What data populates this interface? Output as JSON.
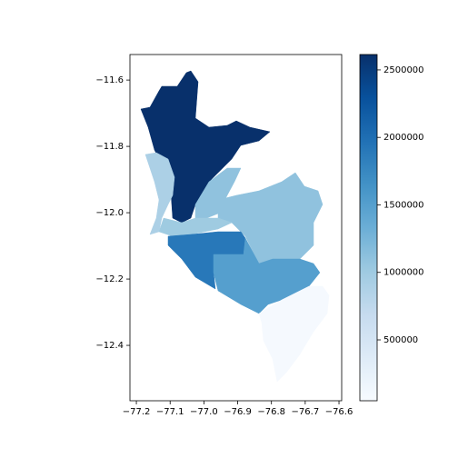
{
  "chart_data": {
    "type": "choropleth",
    "cmap": "Blues",
    "values": [
      2614000,
      900000,
      1100000,
      1100000,
      1000000,
      1900000,
      1500000,
      80000
    ],
    "clim": [
      49000,
      2614000
    ],
    "cticks": [
      500000,
      1000000,
      1500000,
      2000000,
      2500000
    ],
    "xlim": [
      -77.219,
      -76.592
    ],
    "ylim": [
      -12.567,
      -11.523
    ],
    "xticks": [
      {
        "value": -77.2,
        "label": "−77.2"
      },
      {
        "value": -77.1,
        "label": "−77.1"
      },
      {
        "value": -77.0,
        "label": "−77.0"
      },
      {
        "value": -76.9,
        "label": "−76.9"
      },
      {
        "value": -76.8,
        "label": "−76.8"
      },
      {
        "value": -76.7,
        "label": "−76.7"
      },
      {
        "value": -76.6,
        "label": "−76.6"
      }
    ],
    "yticks": [
      {
        "value": -11.6,
        "label": "−11.6"
      },
      {
        "value": -11.8,
        "label": "−11.8"
      },
      {
        "value": -12.0,
        "label": "−12.0"
      },
      {
        "value": -12.2,
        "label": "−12.2"
      },
      {
        "value": -12.4,
        "label": "−12.4"
      }
    ]
  }
}
